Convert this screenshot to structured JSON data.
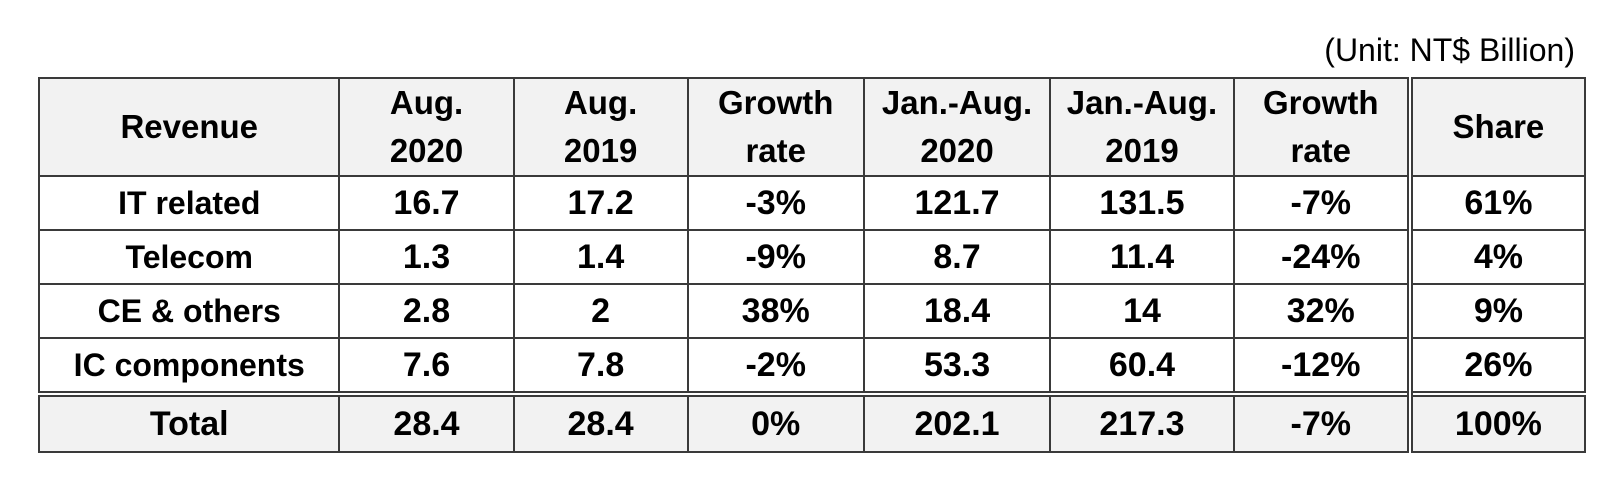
{
  "unit_note": "(Unit: NT$ Billion)",
  "table": {
    "headers": [
      {
        "line1": "Revenue",
        "line2": ""
      },
      {
        "line1": "Aug.",
        "line2": "2020"
      },
      {
        "line1": "Aug.",
        "line2": "2019"
      },
      {
        "line1": "Growth",
        "line2": "rate"
      },
      {
        "line1": "Jan.-Aug.",
        "line2": "2020"
      },
      {
        "line1": "Jan.-Aug.",
        "line2": "2019"
      },
      {
        "line1": "Growth",
        "line2": "rate"
      },
      {
        "line1": "Share",
        "line2": ""
      }
    ],
    "rows": [
      {
        "label": "IT related",
        "aug2020": "16.7",
        "aug2019": "17.2",
        "growth_aug": "-3%",
        "ytd2020": "121.7",
        "ytd2019": "131.5",
        "growth_ytd": "-7%",
        "share": "61%"
      },
      {
        "label": "Telecom",
        "aug2020": "1.3",
        "aug2019": "1.4",
        "growth_aug": "-9%",
        "ytd2020": "8.7",
        "ytd2019": "11.4",
        "growth_ytd": "-24%",
        "share": "4%"
      },
      {
        "label": "CE & others",
        "aug2020": "2.8",
        "aug2019": "2",
        "growth_aug": "38%",
        "ytd2020": "18.4",
        "ytd2019": "14",
        "growth_ytd": "32%",
        "share": "9%"
      },
      {
        "label": "IC components",
        "aug2020": "7.6",
        "aug2019": "7.8",
        "growth_aug": "-2%",
        "ytd2020": "53.3",
        "ytd2019": "60.4",
        "growth_ytd": "-12%",
        "share": "26%"
      }
    ],
    "total": {
      "label": "Total",
      "aug2020": "28.4",
      "aug2019": "28.4",
      "growth_aug": "0%",
      "ytd2020": "202.1",
      "ytd2019": "217.3",
      "growth_ytd": "-7%",
      "share": "100%"
    }
  }
}
